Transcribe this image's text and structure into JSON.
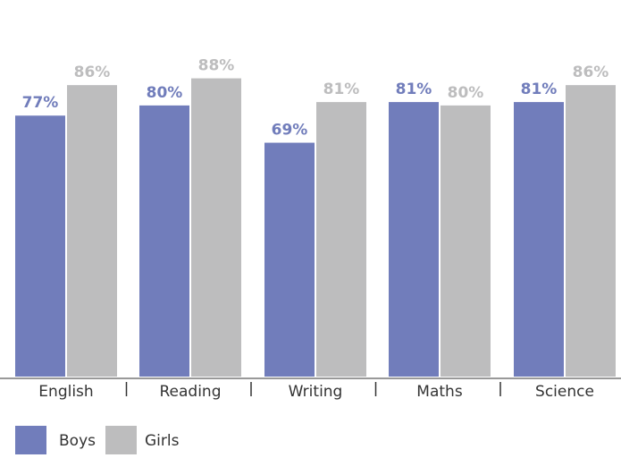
{
  "chart_data": {
    "type": "bar",
    "categories": [
      "English",
      "Reading",
      "Writing",
      "Maths",
      "Science"
    ],
    "series": [
      {
        "name": "Boys",
        "values": [
          77,
          80,
          69,
          81,
          81
        ],
        "color": "#717dbb"
      },
      {
        "name": "Girls",
        "values": [
          86,
          88,
          81,
          80,
          86
        ],
        "color": "#bdbdbe"
      }
    ],
    "value_labels": {
      "Boys": [
        "77%",
        "80%",
        "69%",
        "81%",
        "81%"
      ],
      "Girls": [
        "86%",
        "88%",
        "81%",
        "80%",
        "86%"
      ]
    },
    "ylim": [
      0,
      100
    ],
    "grid": false,
    "legend_position": "bottom-left",
    "title": "",
    "xlabel": "",
    "ylabel": ""
  },
  "colors": {
    "axis": "#333333",
    "category_text": "#333333",
    "legend_text": "#333333"
  }
}
